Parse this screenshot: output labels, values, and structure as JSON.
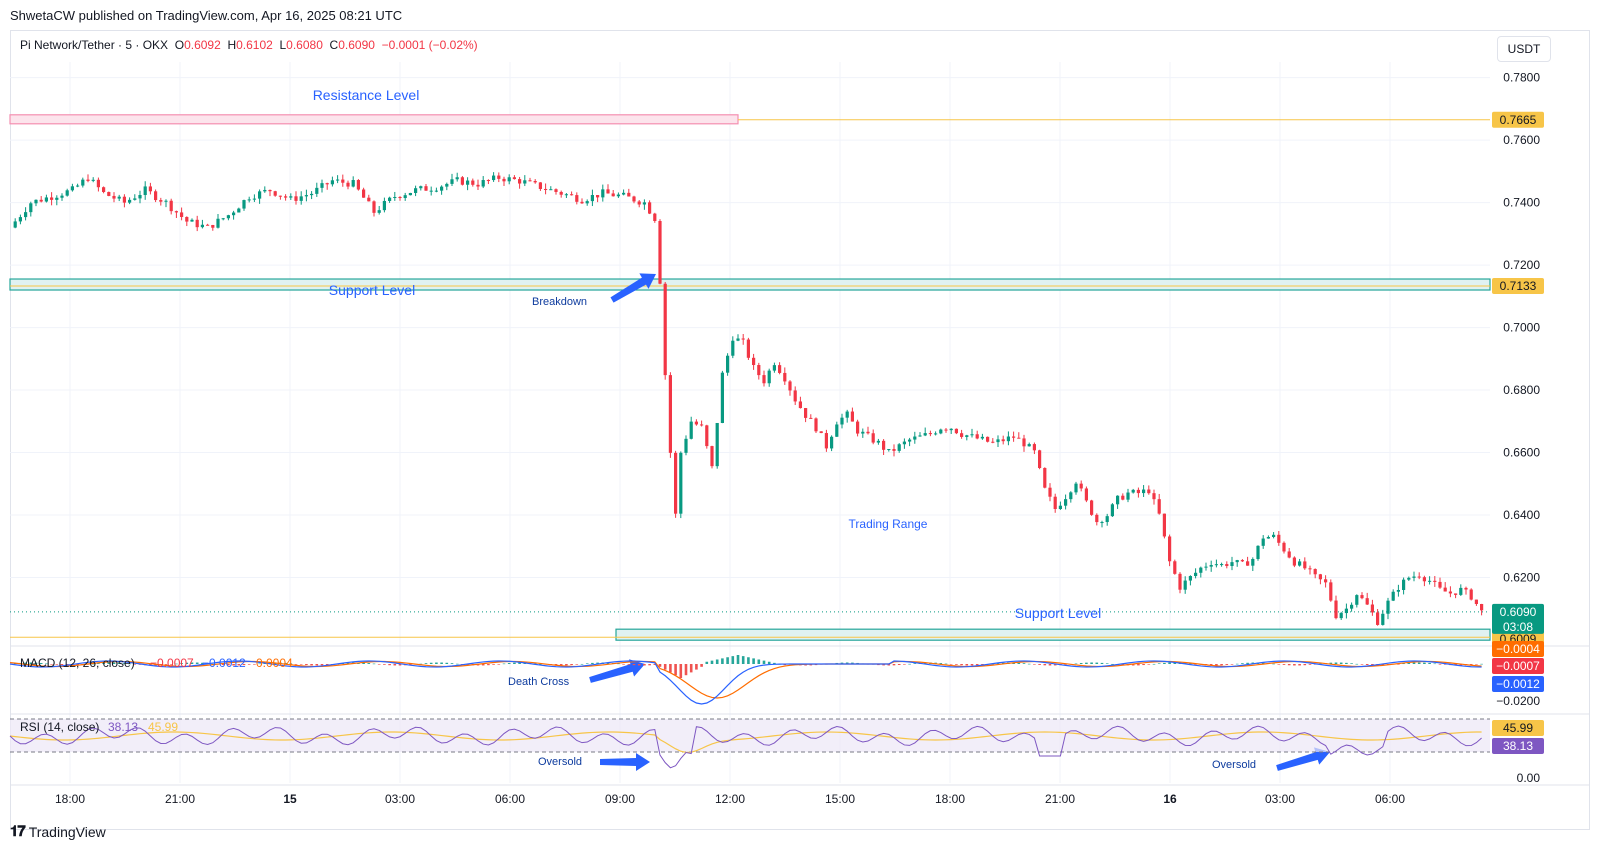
{
  "header": {
    "published": "ShwetaCW published on TradingView.com, Apr 16, 2025 08:21 UTC",
    "symbol": "Pi Network/Tether · 5 · OKX",
    "o_label": "O",
    "o": "0.6092",
    "h_label": "H",
    "h": "0.6102",
    "l_label": "L",
    "l": "0.6080",
    "c_label": "C",
    "c": "0.6090",
    "change": "−0.0001 (−0.02%)",
    "currency": "USDT"
  },
  "footer": {
    "brand": "TradingView"
  },
  "colors": {
    "up": "#089981",
    "down": "#f23645",
    "resistance": "#f48fb1",
    "support": "#26a69a",
    "level_line": "#f7c548",
    "annotation": "#2962ff",
    "macd": "#2962ff",
    "signal": "#ff6d00",
    "rsi": "#7e57c2"
  },
  "chart_data": [
    {
      "type": "candlestick",
      "title": "Pi Network/Tether · 5 · OKX",
      "x_ticks": [
        "18:00",
        "21:00",
        "15",
        "03:00",
        "06:00",
        "09:00",
        "12:00",
        "15:00",
        "18:00",
        "21:00",
        "16",
        "03:00",
        "06:00"
      ],
      "y_ticks": [
        "0.7800",
        "0.7600",
        "0.7400",
        "0.7200",
        "0.7000",
        "0.6800",
        "0.6600",
        "0.6400",
        "0.6200"
      ],
      "ylim": [
        0.6,
        0.785
      ],
      "price_path": [
        [
          0,
          0.732
        ],
        [
          4,
          0.74
        ],
        [
          8,
          0.742
        ],
        [
          12,
          0.744
        ],
        [
          15,
          0.748
        ],
        [
          18,
          0.743
        ],
        [
          22,
          0.74
        ],
        [
          26,
          0.744
        ],
        [
          30,
          0.74
        ],
        [
          34,
          0.734
        ],
        [
          38,
          0.732
        ],
        [
          42,
          0.736
        ],
        [
          46,
          0.742
        ],
        [
          50,
          0.744
        ],
        [
          54,
          0.741
        ],
        [
          58,
          0.743
        ],
        [
          62,
          0.747
        ],
        [
          66,
          0.746
        ],
        [
          70,
          0.737
        ],
        [
          74,
          0.742
        ],
        [
          78,
          0.744
        ],
        [
          82,
          0.745
        ],
        [
          86,
          0.747
        ],
        [
          90,
          0.746
        ],
        [
          94,
          0.748
        ],
        [
          98,
          0.747
        ],
        [
          102,
          0.745
        ],
        [
          106,
          0.743
        ],
        [
          110,
          0.741
        ],
        [
          114,
          0.743
        ],
        [
          118,
          0.742
        ],
        [
          122,
          0.74
        ],
        [
          124,
          0.735
        ],
        [
          125,
          0.715
        ],
        [
          126,
          0.685
        ],
        [
          127,
          0.66
        ],
        [
          128,
          0.64
        ],
        [
          129,
          0.66
        ],
        [
          131,
          0.67
        ],
        [
          133,
          0.668
        ],
        [
          135,
          0.655
        ],
        [
          137,
          0.685
        ],
        [
          139,
          0.697
        ],
        [
          141,
          0.695
        ],
        [
          143,
          0.687
        ],
        [
          145,
          0.683
        ],
        [
          147,
          0.689
        ],
        [
          149,
          0.684
        ],
        [
          151,
          0.677
        ],
        [
          153,
          0.672
        ],
        [
          155,
          0.668
        ],
        [
          157,
          0.662
        ],
        [
          159,
          0.67
        ],
        [
          161,
          0.672
        ],
        [
          163,
          0.667
        ],
        [
          165,
          0.665
        ],
        [
          167,
          0.663
        ],
        [
          169,
          0.66
        ],
        [
          171,
          0.662
        ],
        [
          173,
          0.664
        ],
        [
          175,
          0.665
        ],
        [
          177,
          0.666
        ],
        [
          179,
          0.668
        ],
        [
          181,
          0.668
        ],
        [
          183,
          0.666
        ],
        [
          185,
          0.665
        ],
        [
          187,
          0.664
        ],
        [
          189,
          0.663
        ],
        [
          191,
          0.664
        ],
        [
          193,
          0.665
        ],
        [
          195,
          0.663
        ],
        [
          197,
          0.66
        ],
        [
          199,
          0.648
        ],
        [
          201,
          0.642
        ],
        [
          203,
          0.646
        ],
        [
          205,
          0.651
        ],
        [
          207,
          0.644
        ],
        [
          209,
          0.638
        ],
        [
          211,
          0.64
        ],
        [
          213,
          0.645
        ],
        [
          215,
          0.647
        ],
        [
          217,
          0.647
        ],
        [
          219,
          0.648
        ],
        [
          221,
          0.64
        ],
        [
          223,
          0.625
        ],
        [
          225,
          0.617
        ],
        [
          227,
          0.62
        ],
        [
          229,
          0.623
        ],
        [
          231,
          0.625
        ],
        [
          233,
          0.624
        ],
        [
          235,
          0.625
        ],
        [
          237,
          0.624
        ],
        [
          239,
          0.626
        ],
        [
          241,
          0.633
        ],
        [
          243,
          0.633
        ],
        [
          245,
          0.629
        ],
        [
          247,
          0.625
        ],
        [
          249,
          0.623
        ],
        [
          251,
          0.62
        ],
        [
          253,
          0.618
        ],
        [
          255,
          0.608
        ],
        [
          257,
          0.61
        ],
        [
          259,
          0.615
        ],
        [
          261,
          0.611
        ],
        [
          263,
          0.606
        ],
        [
          265,
          0.612
        ],
        [
          267,
          0.617
        ],
        [
          269,
          0.62
        ],
        [
          271,
          0.621
        ],
        [
          273,
          0.619
        ],
        [
          275,
          0.616
        ],
        [
          277,
          0.615
        ],
        [
          279,
          0.616
        ],
        [
          281,
          0.614
        ],
        [
          283,
          0.609
        ]
      ],
      "levels": [
        {
          "label": "0.7665",
          "value": 0.7665
        },
        {
          "label": "0.7133",
          "value": 0.7133
        },
        {
          "label": "0.6009",
          "value": 0.6009
        }
      ],
      "last_price": {
        "value": 0.609,
        "label": "0.6090",
        "countdown": "03:08"
      },
      "annotations": {
        "resistance": "Resistance Level",
        "support_top": "Support Level",
        "breakdown": "Breakdown",
        "trading_range": "Trading Range",
        "support_bottom": "Support Level"
      }
    },
    {
      "type": "line",
      "title": "MACD (12, 26, close)",
      "legend_values": [
        "−0.0007",
        "−0.0012",
        "0.0004"
      ],
      "y_ticks": [
        "−0.0200"
      ],
      "price_labels": [
        "−0.0004",
        "−0.0007",
        "−0.0012"
      ],
      "annotation": "Death Cross"
    },
    {
      "type": "line",
      "title": "RSI (14, close)",
      "legend_values": [
        "38.13",
        "45.99"
      ],
      "y_ticks": [
        "0.00"
      ],
      "price_labels": [
        "45.99",
        "38.13"
      ],
      "annotations": [
        "Oversold",
        "Oversold"
      ]
    }
  ]
}
